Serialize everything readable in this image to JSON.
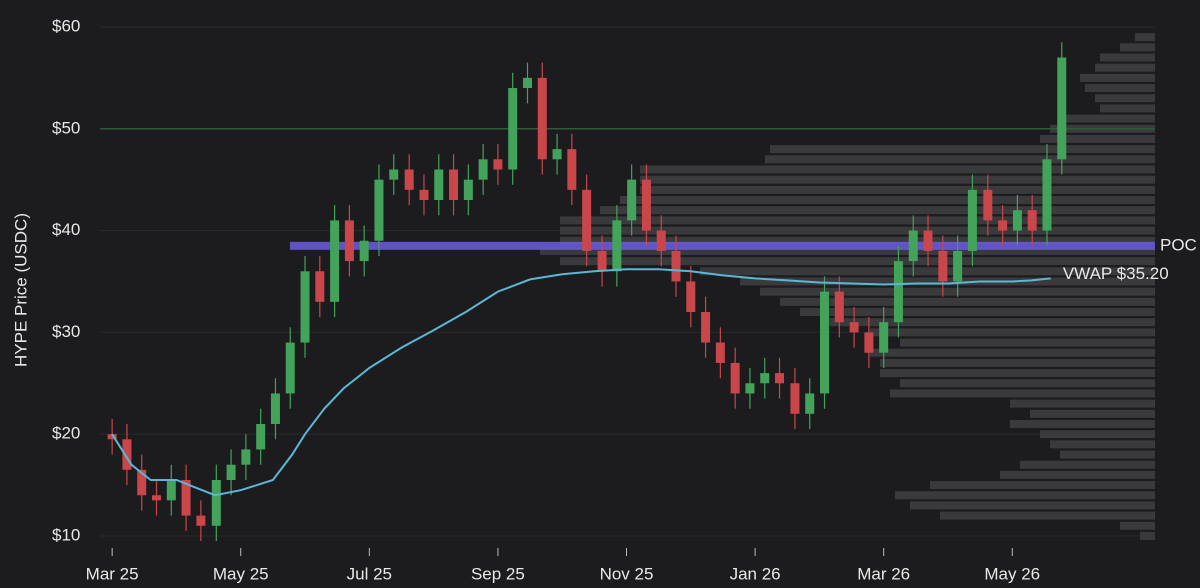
{
  "chart_data": {
    "type": "candlestick",
    "y_label": "HYPE Price (USDC)",
    "xlim": [
      -0.5,
      16.5
    ],
    "xticks": [
      {
        "value": 0,
        "label": "Mar 25"
      },
      {
        "value": 2,
        "label": "May 25"
      },
      {
        "value": 4,
        "label": "Jul 25"
      },
      {
        "value": 6,
        "label": "Sep 25"
      },
      {
        "value": 8,
        "label": "Nov 25"
      },
      {
        "value": 10,
        "label": "Jan 26"
      },
      {
        "value": 12,
        "label": "Mar 26"
      },
      {
        "value": 14,
        "label": "May 26"
      }
    ],
    "ylim": [
      7.6,
      62.6
    ],
    "yticks": [
      {
        "value": 10,
        "label": "$10"
      },
      {
        "value": 20,
        "label": "$20"
      },
      {
        "value": 30,
        "label": "$30"
      },
      {
        "value": 40,
        "label": "$40"
      },
      {
        "value": 50,
        "label": "$50"
      },
      {
        "value": 60,
        "label": "$60"
      }
    ],
    "grid": true,
    "up_color": "#43a35a",
    "down_color": "#c9474a",
    "x": [
      0,
      0.23,
      0.46,
      0.69,
      0.92,
      1.15,
      1.38,
      1.62,
      1.85,
      2.08,
      2.31,
      2.54,
      2.77,
      3,
      3.23,
      3.46,
      3.69,
      3.92,
      4.15,
      4.38,
      4.62,
      4.85,
      5.08,
      5.31,
      5.54,
      5.77,
      6,
      6.23,
      6.46,
      6.69,
      6.92,
      7.15,
      7.38,
      7.62,
      7.85,
      8.08,
      8.31,
      8.54,
      8.77,
      9,
      9.23,
      9.46,
      9.69,
      9.92,
      10.15,
      10.38,
      10.62,
      10.85,
      11.08,
      11.31,
      11.54,
      11.77,
      12,
      12.23,
      12.46,
      12.69,
      12.92,
      13.15,
      13.38,
      13.62,
      13.85,
      14.08,
      14.31,
      14.54,
      14.77
    ],
    "open": [
      20,
      19.5,
      16.5,
      14,
      13.5,
      15.5,
      12,
      11,
      15.5,
      17,
      18.5,
      21,
      24,
      29,
      36,
      33,
      41,
      37,
      39,
      45,
      46,
      44,
      43,
      46,
      43,
      45,
      47,
      46,
      54,
      55,
      47,
      48,
      44,
      38,
      36,
      41,
      45,
      40,
      38,
      35,
      32,
      29,
      27,
      24,
      25,
      26,
      25,
      22,
      24,
      34,
      31,
      30,
      28,
      31,
      37,
      40,
      38,
      35,
      38,
      44,
      41,
      40,
      42,
      40,
      47
    ],
    "high": [
      21.5,
      21,
      18,
      15.5,
      17,
      17,
      13.5,
      17,
      18.5,
      20,
      22.5,
      25.5,
      30.5,
      37.5,
      37.5,
      42.5,
      42.5,
      40.5,
      46.5,
      47.5,
      47.5,
      45.5,
      47.5,
      47.5,
      46.5,
      48.5,
      48.5,
      55.5,
      56.5,
      56.5,
      49.5,
      49.5,
      45.5,
      39.5,
      42.5,
      46.5,
      46.5,
      41.5,
      39.5,
      36.5,
      33.5,
      30.5,
      28.5,
      26.5,
      27.5,
      27.5,
      26.5,
      25.5,
      35.5,
      35.5,
      32.5,
      31.5,
      32.5,
      38.5,
      41.5,
      41.5,
      39.5,
      39.5,
      45.5,
      45.5,
      42.5,
      43.5,
      43.5,
      48.5,
      58.5
    ],
    "low": [
      18,
      15,
      12.5,
      12,
      12,
      10.5,
      9.5,
      9.5,
      14,
      15.5,
      17,
      19.5,
      22.5,
      27.5,
      31.5,
      31.5,
      35.5,
      35.5,
      37.5,
      43.5,
      42.5,
      41.5,
      41.5,
      41.5,
      41.5,
      43.5,
      44.5,
      44.5,
      52.5,
      45.5,
      45.5,
      42.5,
      36.5,
      34.5,
      34.5,
      39.5,
      38.5,
      36.5,
      33.5,
      30.5,
      27.5,
      25.5,
      22.5,
      22.5,
      23.5,
      23.5,
      20.5,
      20.5,
      22.5,
      29.5,
      28.5,
      26.5,
      26.5,
      29.5,
      35.5,
      36.5,
      33.5,
      33.5,
      36.5,
      39.5,
      38.5,
      38.5,
      38.5,
      38.5,
      45.5
    ],
    "close": [
      19.5,
      16.5,
      14,
      13.5,
      15.5,
      12,
      11,
      15.5,
      17,
      18.5,
      21,
      24,
      29,
      36,
      33,
      41,
      37,
      39,
      45,
      46,
      44,
      43,
      46,
      43,
      45,
      47,
      46,
      54,
      55,
      47,
      48,
      44,
      38,
      36,
      41,
      45,
      40,
      38,
      35,
      32,
      29,
      27,
      24,
      25,
      26,
      25,
      22,
      24,
      34,
      31,
      30,
      28,
      31,
      37,
      40,
      38,
      35,
      38,
      44,
      41,
      40,
      42,
      40,
      47,
      57
    ],
    "vwap": {
      "label": "VWAP $35.20",
      "color": "#5bb7d6",
      "x": [
        0,
        0.3,
        0.6,
        1,
        1.4,
        1.6,
        2,
        2.5,
        2.8,
        3,
        3.3,
        3.6,
        4,
        4.5,
        5,
        5.5,
        6,
        6.5,
        7,
        7.5,
        8,
        8.5,
        9,
        9.5,
        10,
        10.5,
        11,
        11.5,
        12,
        12.5,
        13,
        13.5,
        14,
        14.3,
        14.6
      ],
      "values": [
        20,
        17,
        15.5,
        15.5,
        14.5,
        14,
        14.5,
        15.5,
        18,
        20,
        22.5,
        24.5,
        26.5,
        28.5,
        30.2,
        32,
        34,
        35.2,
        35.7,
        36,
        36.2,
        36.2,
        36,
        35.6,
        35.3,
        35.1,
        34.9,
        34.8,
        34.7,
        34.8,
        34.8,
        35,
        35,
        35.1,
        35.3
      ]
    },
    "poc": {
      "label": "POC",
      "value": 38.5,
      "color": "#6b5ce0"
    },
    "level_line": {
      "value": 50,
      "color": "#2f5a3a"
    },
    "volume_profile": {
      "color": "#3a3a3d",
      "levels": [
        10,
        11,
        12,
        13,
        14,
        15,
        16,
        17,
        18,
        19,
        20,
        21,
        22,
        23,
        24,
        25,
        26,
        27,
        28,
        29,
        30,
        31,
        32,
        33,
        34,
        35,
        36,
        37,
        38,
        39,
        40,
        41,
        42,
        43,
        44,
        45,
        46,
        47,
        48,
        49,
        50,
        51,
        52,
        53,
        54,
        55,
        56,
        57,
        58,
        59
      ],
      "values": [
        15,
        35,
        215,
        245,
        260,
        225,
        155,
        135,
        95,
        105,
        115,
        145,
        125,
        145,
        265,
        255,
        275,
        275,
        285,
        255,
        285,
        335,
        355,
        375,
        395,
        415,
        455,
        595,
        615,
        595,
        595,
        595,
        555,
        535,
        515,
        515,
        515,
        390,
        385,
        115,
        105,
        95,
        55,
        60,
        70,
        75,
        60,
        55,
        35,
        20
      ]
    }
  }
}
